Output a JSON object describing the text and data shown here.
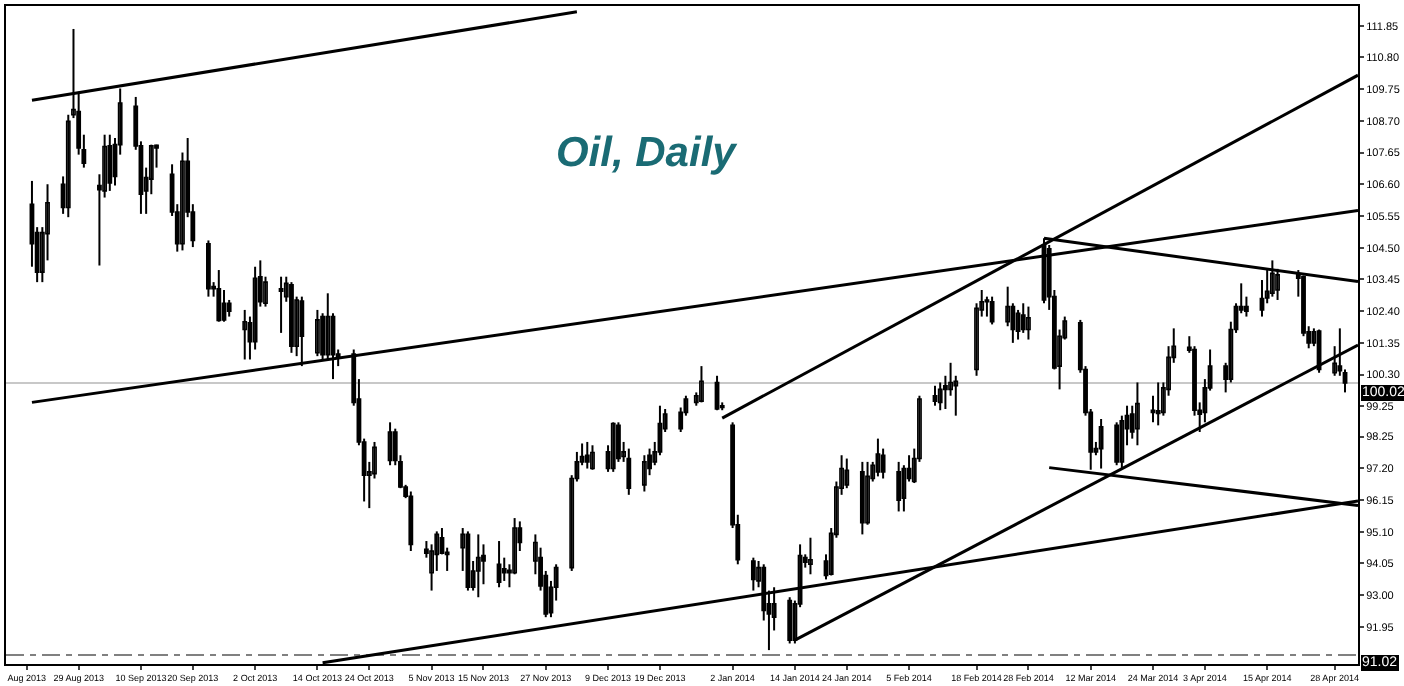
{
  "chart_data": {
    "type": "candlestick",
    "title": "Oil, Daily",
    "x": [
      "2013-08-20",
      "2013-08-21",
      "2013-08-22",
      "2013-08-23",
      "2013-08-26",
      "2013-08-27",
      "2013-08-28",
      "2013-08-29",
      "2013-08-30",
      "2013-09-02",
      "2013-09-03",
      "2013-09-04",
      "2013-09-05",
      "2013-09-06",
      "2013-09-09",
      "2013-09-10",
      "2013-09-11",
      "2013-09-12",
      "2013-09-13",
      "2013-09-16",
      "2013-09-17",
      "2013-09-18",
      "2013-09-19",
      "2013-09-20",
      "2013-09-23",
      "2013-09-24",
      "2013-09-25",
      "2013-09-26",
      "2013-09-27",
      "2013-09-30",
      "2013-10-01",
      "2013-10-02",
      "2013-10-03",
      "2013-10-04",
      "2013-10-07",
      "2013-10-08",
      "2013-10-09",
      "2013-10-10",
      "2013-10-11",
      "2013-10-14",
      "2013-10-15",
      "2013-10-16",
      "2013-10-17",
      "2013-10-18",
      "2013-10-21",
      "2013-10-22",
      "2013-10-23",
      "2013-10-24",
      "2013-10-25",
      "2013-10-28",
      "2013-10-29",
      "2013-10-30",
      "2013-10-31",
      "2013-11-01",
      "2013-11-04",
      "2013-11-05",
      "2013-11-06",
      "2013-11-07",
      "2013-11-08",
      "2013-11-11",
      "2013-11-12",
      "2013-11-13",
      "2013-11-14",
      "2013-11-15",
      "2013-11-18",
      "2013-11-19",
      "2013-11-20",
      "2013-11-21",
      "2013-11-22",
      "2013-11-25",
      "2013-11-26",
      "2013-11-27",
      "2013-11-28",
      "2013-11-29",
      "2013-12-02",
      "2013-12-03",
      "2013-12-04",
      "2013-12-05",
      "2013-12-06",
      "2013-12-09",
      "2013-12-10",
      "2013-12-11",
      "2013-12-12",
      "2013-12-13",
      "2013-12-16",
      "2013-12-17",
      "2013-12-18",
      "2013-12-19",
      "2013-12-20",
      "2013-12-23",
      "2013-12-24",
      "2013-12-26",
      "2013-12-27",
      "2013-12-30",
      "2013-12-31",
      "2014-01-02",
      "2014-01-03",
      "2014-01-06",
      "2014-01-07",
      "2014-01-08",
      "2014-01-09",
      "2014-01-10",
      "2014-01-13",
      "2014-01-14",
      "2014-01-15",
      "2014-01-16",
      "2014-01-17",
      "2014-01-20",
      "2014-01-21",
      "2014-01-22",
      "2014-01-23",
      "2014-01-24",
      "2014-01-27",
      "2014-01-28",
      "2014-01-29",
      "2014-01-30",
      "2014-01-31",
      "2014-02-03",
      "2014-02-04",
      "2014-02-05",
      "2014-02-06",
      "2014-02-07",
      "2014-02-10",
      "2014-02-11",
      "2014-02-12",
      "2014-02-13",
      "2014-02-14",
      "2014-02-18",
      "2014-02-19",
      "2014-02-20",
      "2014-02-21",
      "2014-02-24",
      "2014-02-25",
      "2014-02-26",
      "2014-02-27",
      "2014-02-28",
      "2014-03-03",
      "2014-03-04",
      "2014-03-05",
      "2014-03-06",
      "2014-03-07",
      "2014-03-10",
      "2014-03-11",
      "2014-03-12",
      "2014-03-13",
      "2014-03-14",
      "2014-03-17",
      "2014-03-18",
      "2014-03-19",
      "2014-03-20",
      "2014-03-21",
      "2014-03-24",
      "2014-03-25",
      "2014-03-26",
      "2014-03-27",
      "2014-03-28",
      "2014-03-31",
      "2014-04-01",
      "2014-04-02",
      "2014-04-03",
      "2014-04-04",
      "2014-04-07",
      "2014-04-08",
      "2014-04-09",
      "2014-04-10",
      "2014-04-11",
      "2014-04-14",
      "2014-04-15",
      "2014-04-16",
      "2014-04-17",
      "2014-04-21",
      "2014-04-22",
      "2014-04-23",
      "2014-04-24",
      "2014-04-25",
      "2014-04-28",
      "2014-04-29",
      "2014-04-30"
    ],
    "ohlc": [
      [
        105.94,
        106.71,
        103.87,
        104.63
      ],
      [
        105.0,
        105.18,
        103.36,
        103.69
      ],
      [
        103.69,
        105.18,
        103.36,
        105.0
      ],
      [
        104.96,
        106.6,
        104.08,
        105.99
      ],
      [
        106.6,
        106.86,
        105.62,
        105.83
      ],
      [
        105.83,
        108.9,
        105.51,
        108.68
      ],
      [
        108.9,
        111.74,
        108.79,
        109.07
      ],
      [
        109.01,
        109.66,
        107.58,
        107.8
      ],
      [
        107.74,
        108.24,
        107.15,
        107.3
      ],
      [
        106.56,
        106.93,
        103.91,
        106.42
      ],
      [
        106.38,
        108.24,
        106.16,
        107.85
      ],
      [
        107.87,
        108.24,
        106.38,
        106.64
      ],
      [
        106.86,
        108.13,
        106.56,
        107.91
      ],
      [
        107.91,
        109.77,
        107.58,
        109.29
      ],
      [
        109.18,
        109.49,
        107.74,
        107.87
      ],
      [
        107.87,
        108.02,
        105.62,
        106.27
      ],
      [
        106.38,
        107.15,
        105.62,
        106.82
      ],
      [
        106.77,
        107.91,
        106.27,
        107.87
      ],
      [
        107.89,
        107.91,
        107.15,
        107.8
      ],
      [
        106.93,
        107.26,
        105.55,
        105.68
      ],
      [
        105.68,
        105.94,
        104.37,
        104.63
      ],
      [
        104.63,
        107.65,
        104.41,
        107.36
      ],
      [
        107.36,
        108.13,
        105.51,
        105.68
      ],
      [
        105.68,
        105.94,
        104.52,
        104.74
      ],
      [
        104.63,
        104.74,
        102.88,
        103.14
      ],
      [
        103.21,
        103.36,
        102.88,
        103.14
      ],
      [
        103.14,
        103.76,
        102.05,
        102.09
      ],
      [
        102.11,
        103.1,
        102.05,
        102.66
      ],
      [
        102.66,
        102.77,
        102.22,
        102.4
      ],
      [
        101.79,
        102.44,
        100.8,
        102.05
      ],
      [
        102.01,
        102.22,
        100.8,
        101.39
      ],
      [
        101.39,
        103.87,
        101.13,
        103.49
      ],
      [
        103.54,
        104.08,
        102.55,
        102.71
      ],
      [
        102.66,
        103.54,
        102.55,
        103.36
      ],
      [
        103.14,
        103.54,
        101.68,
        103.06
      ],
      [
        102.88,
        103.54,
        102.71,
        103.32
      ],
      [
        103.27,
        103.36,
        101.02,
        101.24
      ],
      [
        101.24,
        102.88,
        100.91,
        102.77
      ],
      [
        102.73,
        102.88,
        100.58,
        101.57
      ],
      [
        101.02,
        102.44,
        100.91,
        102.11
      ],
      [
        102.22,
        102.33,
        100.8,
        100.96
      ],
      [
        100.96,
        102.99,
        100.8,
        102.22
      ],
      [
        102.22,
        102.33,
        100.15,
        100.96
      ],
      [
        100.91,
        101.13,
        100.58,
        100.98
      ],
      [
        100.98,
        101.13,
        99.27,
        99.38
      ],
      [
        99.49,
        100.15,
        97.96,
        98.07
      ],
      [
        98.07,
        98.18,
        96.1,
        96.97
      ],
      [
        96.97,
        97.41,
        95.88,
        97.08
      ],
      [
        97.02,
        98.07,
        96.86,
        97.89
      ],
      [
        97.46,
        98.72,
        97.3,
        98.4
      ],
      [
        98.4,
        98.51,
        97.3,
        97.46
      ],
      [
        97.41,
        97.63,
        96.54,
        96.58
      ],
      [
        96.58,
        96.65,
        96.21,
        96.27
      ],
      [
        96.27,
        96.43,
        94.46,
        94.68
      ],
      [
        94.52,
        94.79,
        94.24,
        94.39
      ],
      [
        93.74,
        94.68,
        93.15,
        94.46
      ],
      [
        94.35,
        95.11,
        93.8,
        95.01
      ],
      [
        94.9,
        95.22,
        94.35,
        94.39
      ],
      [
        94.35,
        94.57,
        93.8,
        94.42
      ],
      [
        94.57,
        95.22,
        93.8,
        95.01
      ],
      [
        95.01,
        95.11,
        93.15,
        93.26
      ],
      [
        93.26,
        94.13,
        93.15,
        93.8
      ],
      [
        93.8,
        95.01,
        92.93,
        94.24
      ],
      [
        94.31,
        94.68,
        93.36,
        94.13
      ],
      [
        94.02,
        94.79,
        93.26,
        93.43
      ],
      [
        93.87,
        94.24,
        93.47,
        93.74
      ],
      [
        93.82,
        94.02,
        93.26,
        93.74
      ],
      [
        93.74,
        95.55,
        93.69,
        95.22
      ],
      [
        95.22,
        95.44,
        94.46,
        94.74
      ],
      [
        94.13,
        95.01,
        93.69,
        94.74
      ],
      [
        94.24,
        94.57,
        93.15,
        93.3
      ],
      [
        93.65,
        93.8,
        92.27,
        92.38
      ],
      [
        92.42,
        93.47,
        92.27,
        93.26
      ],
      [
        93.26,
        94.02,
        92.82,
        93.91
      ],
      [
        93.91,
        96.97,
        93.8,
        96.86
      ],
      [
        96.86,
        97.74,
        96.76,
        97.41
      ],
      [
        97.41,
        98.02,
        97.3,
        97.59
      ],
      [
        97.63,
        98.07,
        97.19,
        97.41
      ],
      [
        97.19,
        97.96,
        97.15,
        97.72
      ],
      [
        97.19,
        97.96,
        97.08,
        97.74
      ],
      [
        97.19,
        98.72,
        97.08,
        98.68
      ],
      [
        98.62,
        98.72,
        97.41,
        97.52
      ],
      [
        97.59,
        98.07,
        97.41,
        97.74
      ],
      [
        97.52,
        97.85,
        96.32,
        96.54
      ],
      [
        96.65,
        97.63,
        96.43,
        97.41
      ],
      [
        97.63,
        97.85,
        96.97,
        97.19
      ],
      [
        97.41,
        98.07,
        97.3,
        97.74
      ],
      [
        97.74,
        99.27,
        97.63,
        98.68
      ],
      [
        98.51,
        99.16,
        98.4,
        98.99
      ],
      [
        99.05,
        99.21,
        98.4,
        98.51
      ],
      [
        99.05,
        99.6,
        98.94,
        99.49
      ],
      [
        99.38,
        99.71,
        99.27,
        99.6
      ],
      [
        99.42,
        100.58,
        99.38,
        100.08
      ],
      [
        100.04,
        100.26,
        99.12,
        99.16
      ],
      [
        99.27,
        99.38,
        99.12,
        99.21
      ],
      [
        98.62,
        98.72,
        95.22,
        95.33
      ],
      [
        95.33,
        95.66,
        94.02,
        94.17
      ],
      [
        94.13,
        94.24,
        93.15,
        93.52
      ],
      [
        93.47,
        94.13,
        93.26,
        93.91
      ],
      [
        93.91,
        94.02,
        92.16,
        92.49
      ],
      [
        92.71,
        93.15,
        91.18,
        92.38
      ],
      [
        92.27,
        93.26,
        91.83,
        92.71
      ],
      [
        92.82,
        92.93,
        91.4,
        91.51
      ],
      [
        91.51,
        92.82,
        91.4,
        92.71
      ],
      [
        92.71,
        94.68,
        92.6,
        94.31
      ],
      [
        94.24,
        94.35,
        93.91,
        94.09
      ],
      [
        94.02,
        94.9,
        93.69,
        94.17
      ],
      [
        94.13,
        94.35,
        93.52,
        93.65
      ],
      [
        93.69,
        95.22,
        93.65,
        95.05
      ],
      [
        95.01,
        96.76,
        94.9,
        96.58
      ],
      [
        96.54,
        97.63,
        96.32,
        97.19
      ],
      [
        96.65,
        97.52,
        96.54,
        97.13
      ],
      [
        97.08,
        97.41,
        95.01,
        95.4
      ],
      [
        95.4,
        97.41,
        95.33,
        96.93
      ],
      [
        96.86,
        97.41,
        96.76,
        97.3
      ],
      [
        97.08,
        98.18,
        96.93,
        97.67
      ],
      [
        97.63,
        97.85,
        96.86,
        97.08
      ],
      [
        97.08,
        97.41,
        95.77,
        96.14
      ],
      [
        96.21,
        97.3,
        95.77,
        97.19
      ],
      [
        97.19,
        97.63,
        96.76,
        96.86
      ],
      [
        96.76,
        97.85,
        96.71,
        97.52
      ],
      [
        97.52,
        99.6,
        97.41,
        99.49
      ],
      [
        99.6,
        99.93,
        99.27,
        99.42
      ],
      [
        99.38,
        100.04,
        99.12,
        99.81
      ],
      [
        99.93,
        100.26,
        99.16,
        99.81
      ],
      [
        99.81,
        100.69,
        99.6,
        100.04
      ],
      [
        99.93,
        100.26,
        98.94,
        100.08
      ],
      [
        100.47,
        102.66,
        100.26,
        102.49
      ],
      [
        102.44,
        103.1,
        102.22,
        102.71
      ],
      [
        102.77,
        102.88,
        102.22,
        102.71
      ],
      [
        102.71,
        102.88,
        101.96,
        102.05
      ],
      [
        102.05,
        103.21,
        101.9,
        102.55
      ],
      [
        102.55,
        102.66,
        101.35,
        101.79
      ],
      [
        101.74,
        102.44,
        101.46,
        102.33
      ],
      [
        102.27,
        102.66,
        101.68,
        101.79
      ],
      [
        101.79,
        102.55,
        101.46,
        102.18
      ],
      [
        102.77,
        104.81,
        102.66,
        104.59
      ],
      [
        104.46,
        104.59,
        102.44,
        102.88
      ],
      [
        102.88,
        103.1,
        100.47,
        100.52
      ],
      [
        100.58,
        101.79,
        99.81,
        101.57
      ],
      [
        101.52,
        102.22,
        101.46,
        102.07
      ],
      [
        102.01,
        102.11,
        100.36,
        100.47
      ],
      [
        100.47,
        100.58,
        98.94,
        99.05
      ],
      [
        99.05,
        99.16,
        97.15,
        97.74
      ],
      [
        97.74,
        98.07,
        97.63,
        97.85
      ],
      [
        97.85,
        98.83,
        97.19,
        98.57
      ],
      [
        98.62,
        98.72,
        97.3,
        97.41
      ],
      [
        97.41,
        98.94,
        97.19,
        98.77
      ],
      [
        98.51,
        99.27,
        97.96,
        98.94
      ],
      [
        98.99,
        99.27,
        98.18,
        98.4
      ],
      [
        98.51,
        100.04,
        97.96,
        99.34
      ],
      [
        99.12,
        99.6,
        98.72,
        99.05
      ],
      [
        99.1,
        100.04,
        98.62,
        99.01
      ],
      [
        99.05,
        100.04,
        98.94,
        99.86
      ],
      [
        99.81,
        101.24,
        99.6,
        100.87
      ],
      [
        100.87,
        101.83,
        100.69,
        101.24
      ],
      [
        101.2,
        101.57,
        101.02,
        101.11
      ],
      [
        101.13,
        101.24,
        98.94,
        99.12
      ],
      [
        99.12,
        99.38,
        98.4,
        98.99
      ],
      [
        99.05,
        100.15,
        98.72,
        99.86
      ],
      [
        99.86,
        101.13,
        99.77,
        100.58
      ],
      [
        100.58,
        100.69,
        99.71,
        100.15
      ],
      [
        100.15,
        102.05,
        100.04,
        101.79
      ],
      [
        101.79,
        102.66,
        101.68,
        102.55
      ],
      [
        102.55,
        103.32,
        102.33,
        102.44
      ],
      [
        102.55,
        102.88,
        102.22,
        102.4
      ],
      [
        102.44,
        103.43,
        102.22,
        102.82
      ],
      [
        102.84,
        103.76,
        102.66,
        103.06
      ],
      [
        102.99,
        104.08,
        102.88,
        103.65
      ],
      [
        103.1,
        103.8,
        102.77,
        103.6
      ],
      [
        103.6,
        103.76,
        102.88,
        103.49
      ],
      [
        103.54,
        103.58,
        101.57,
        101.68
      ],
      [
        101.72,
        101.9,
        101.17,
        101.35
      ],
      [
        101.35,
        101.83,
        101.24,
        101.72
      ],
      [
        101.74,
        101.79,
        100.36,
        100.47
      ],
      [
        100.36,
        101.24,
        100.26,
        100.67
      ],
      [
        100.58,
        101.83,
        100.26,
        100.43
      ],
      [
        100.36,
        100.47,
        99.71,
        100.02
      ]
    ],
    "color": "#000000",
    "series": [
      {
        "type": "line",
        "color": "#000000",
        "x": [
          "2013-08-20",
          "2013-12-03"
        ],
        "values": [
          109.38,
          112.31
        ]
      },
      {
        "type": "line",
        "color": "#000000",
        "x": [
          "2013-08-20",
          "2014-05-02T12:00"
        ],
        "values": [
          99.38,
          105.73
        ]
      },
      {
        "type": "line",
        "color": "#000000",
        "x": [
          "2013-10-15",
          "2014-05-02T12:00"
        ],
        "values": [
          90.76,
          96.12
        ]
      },
      {
        "type": "line",
        "color": "#000000",
        "x": [
          "2013-12-31",
          "2014-05-02T12:00"
        ],
        "values": [
          98.86,
          110.21
        ]
      },
      {
        "type": "line",
        "color": "#000000",
        "x": [
          "2014-01-14",
          "2014-05-02T12:00"
        ],
        "values": [
          91.51,
          101.28
        ]
      },
      {
        "type": "line",
        "color": "#000000",
        "x": [
          "2014-03-03",
          "2014-05-02T12:00"
        ],
        "values": [
          104.81,
          103.38
        ]
      },
      {
        "type": "line",
        "color": "#000000",
        "x": [
          "2014-03-04",
          "2014-05-02T12:00"
        ],
        "values": [
          97.22,
          95.97
        ]
      }
    ],
    "ref_lines": [
      {
        "axis": "y",
        "value": 100.02,
        "label": "100.02",
        "color": "#c8c8c8",
        "line_style": "solid"
      },
      {
        "axis": "y",
        "value": 91.02,
        "label": "91.02",
        "color": "#808080",
        "line_style": "dashed"
      }
    ],
    "xlim": [
      "2013-08-15",
      "2014-05-02T12:00"
    ],
    "xticks": [
      {
        "value": "2013-08-19",
        "label": "Aug 2013"
      },
      {
        "value": "2013-08-29",
        "label": "29 Aug 2013"
      },
      {
        "value": "2013-09-10",
        "label": "10 Sep 2013"
      },
      {
        "value": "2013-09-20",
        "label": "20 Sep 2013"
      },
      {
        "value": "2013-10-02",
        "label": "2 Oct 2013"
      },
      {
        "value": "2013-10-14",
        "label": "14 Oct 2013"
      },
      {
        "value": "2013-10-24",
        "label": "24 Oct 2013"
      },
      {
        "value": "2013-11-05",
        "label": "5 Nov 2013"
      },
      {
        "value": "2013-11-15",
        "label": "15 Nov 2013"
      },
      {
        "value": "2013-11-27",
        "label": "27 Nov 2013"
      },
      {
        "value": "2013-12-09",
        "label": "9 Dec 2013"
      },
      {
        "value": "2013-12-19",
        "label": "19 Dec 2013"
      },
      {
        "value": "2014-01-02",
        "label": "2 Jan 2014"
      },
      {
        "value": "2014-01-14",
        "label": "14 Jan 2014"
      },
      {
        "value": "2014-01-24",
        "label": "24 Jan 2014"
      },
      {
        "value": "2014-02-05",
        "label": "5 Feb 2014"
      },
      {
        "value": "2014-02-18",
        "label": "18 Feb 2014"
      },
      {
        "value": "2014-02-28",
        "label": "28 Feb 2014"
      },
      {
        "value": "2014-03-12",
        "label": "12 Mar 2014"
      },
      {
        "value": "2014-03-24",
        "label": "24 Mar 2014"
      },
      {
        "value": "2014-04-03",
        "label": "3 Apr 2014"
      },
      {
        "value": "2014-04-15",
        "label": "15 Apr 2014"
      },
      {
        "value": "2014-04-28",
        "label": "28 Apr 2014"
      }
    ],
    "ylim": [
      90.72,
      112.5
    ],
    "yticks": [
      111.85,
      {
        "value": 110.8,
        "label": "110.80"
      },
      109.75,
      {
        "value": 108.7,
        "label": "108.70"
      },
      107.65,
      {
        "value": 106.6,
        "label": "106.60"
      },
      105.55,
      {
        "value": 104.5,
        "label": "104.50"
      },
      103.45,
      {
        "value": 102.4,
        "label": "102.40"
      },
      101.35,
      {
        "value": 100.3,
        "label": "100.30"
      },
      99.25,
      98.25,
      {
        "value": 97.2,
        "label": "97.20"
      },
      96.15,
      {
        "value": 95.1,
        "label": "95.10"
      },
      94.05,
      {
        "value": 93.0,
        "label": "93.00"
      },
      91.95
    ],
    "grid": false
  }
}
